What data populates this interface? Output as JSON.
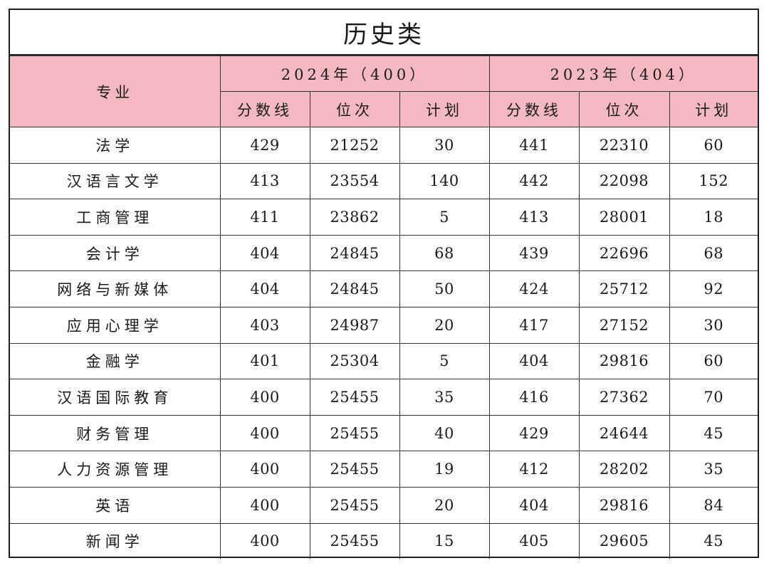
{
  "title": "历史类",
  "header": {
    "major": "专业",
    "group_2024": "2024年（400）",
    "group_2023": "2023年（404）",
    "sub": {
      "score_line": "分数线",
      "rank": "位次",
      "plan": "计划"
    }
  },
  "rows": [
    {
      "major": "法学",
      "y2024": {
        "score": "429",
        "rank": "21252",
        "plan": "30"
      },
      "y2023": {
        "score": "441",
        "rank": "22310",
        "plan": "60"
      }
    },
    {
      "major": "汉语言文学",
      "y2024": {
        "score": "413",
        "rank": "23554",
        "plan": "140"
      },
      "y2023": {
        "score": "442",
        "rank": "22098",
        "plan": "152"
      }
    },
    {
      "major": "工商管理",
      "y2024": {
        "score": "411",
        "rank": "23862",
        "plan": "5"
      },
      "y2023": {
        "score": "413",
        "rank": "28001",
        "plan": "18"
      }
    },
    {
      "major": "会计学",
      "y2024": {
        "score": "404",
        "rank": "24845",
        "plan": "68"
      },
      "y2023": {
        "score": "439",
        "rank": "22696",
        "plan": "68"
      }
    },
    {
      "major": "网络与新媒体",
      "y2024": {
        "score": "404",
        "rank": "24845",
        "plan": "50"
      },
      "y2023": {
        "score": "424",
        "rank": "25712",
        "plan": "92"
      }
    },
    {
      "major": "应用心理学",
      "y2024": {
        "score": "403",
        "rank": "24987",
        "plan": "20"
      },
      "y2023": {
        "score": "417",
        "rank": "27152",
        "plan": "30"
      }
    },
    {
      "major": "金融学",
      "y2024": {
        "score": "401",
        "rank": "25304",
        "plan": "5"
      },
      "y2023": {
        "score": "404",
        "rank": "29816",
        "plan": "60"
      }
    },
    {
      "major": "汉语国际教育",
      "y2024": {
        "score": "400",
        "rank": "25455",
        "plan": "35"
      },
      "y2023": {
        "score": "416",
        "rank": "27362",
        "plan": "70"
      }
    },
    {
      "major": "财务管理",
      "y2024": {
        "score": "400",
        "rank": "25455",
        "plan": "40"
      },
      "y2023": {
        "score": "429",
        "rank": "24644",
        "plan": "45"
      }
    },
    {
      "major": "人力资源管理",
      "y2024": {
        "score": "400",
        "rank": "25455",
        "plan": "19"
      },
      "y2023": {
        "score": "412",
        "rank": "28202",
        "plan": "35"
      }
    },
    {
      "major": "英语",
      "y2024": {
        "score": "400",
        "rank": "25455",
        "plan": "20"
      },
      "y2023": {
        "score": "404",
        "rank": "29816",
        "plan": "84"
      }
    },
    {
      "major": "新闻学",
      "y2024": {
        "score": "400",
        "rank": "25455",
        "plan": "15"
      },
      "y2023": {
        "score": "405",
        "rank": "29605",
        "plan": "45"
      }
    }
  ],
  "colors": {
    "header_bg": "#f3b8c0",
    "border": "#222222"
  }
}
